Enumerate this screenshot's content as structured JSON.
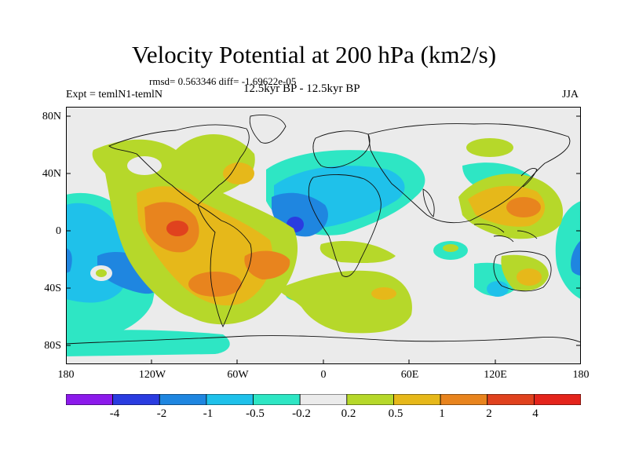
{
  "title": "Velocity Potential at 200 hPa (km2/s)",
  "stats_line": "rmsd= 0.563346 diff= -1.69622e-05",
  "left_label": "Expt = temlN1-temlN",
  "center_label": "12.5kyr BP - 12.5kyr BP",
  "right_label": "JJA",
  "latitude_labels": [
    "80N",
    "40N",
    "0",
    "40S",
    "80S"
  ],
  "longitude_labels": [
    "180",
    "120W",
    "60W",
    "0",
    "60E",
    "120E",
    "180"
  ],
  "colorbar": {
    "labels": [
      "-4",
      "-2",
      "-1",
      "-0.5",
      "-0.2",
      "0.2",
      "0.5",
      "1",
      "2",
      "4"
    ],
    "colors": [
      "#8c1aeb",
      "#2a3ce0",
      "#1f86e0",
      "#1fc1ea",
      "#2ee6c4",
      "#ebebeb",
      "#b6d82a",
      "#e6b81a",
      "#e8841e",
      "#e0421e",
      "#e4241c"
    ]
  },
  "map_colors": {
    "background": "#ebebeb",
    "coast": "#111111"
  }
}
